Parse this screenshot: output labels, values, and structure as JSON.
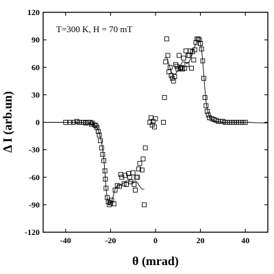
{
  "chart_data": {
    "type": "scatter",
    "title": "",
    "annotation": "T=300 K, H = 70 mT",
    "xlabel": "θ (mrad)",
    "ylabel": "Δ I (arb.un)",
    "xlim": [
      -50,
      50
    ],
    "ylim": [
      -120,
      120
    ],
    "xticks": [
      -40,
      -20,
      0,
      20,
      40
    ],
    "yticks": [
      -120,
      -90,
      -60,
      -30,
      0,
      30,
      60,
      90,
      120
    ],
    "grid": false,
    "legend": "none",
    "series": [
      {
        "kind": "points",
        "marker": "open-square",
        "points": [
          [
            -40,
            0
          ],
          [
            -38,
            0
          ],
          [
            -36.5,
            0
          ],
          [
            -35,
            1
          ],
          [
            -34,
            0
          ],
          [
            -33,
            0
          ],
          [
            -32,
            0
          ],
          [
            -31,
            -1
          ],
          [
            -30,
            0
          ],
          [
            -29,
            0
          ],
          [
            -28.5,
            -2
          ],
          [
            -28,
            -1
          ],
          [
            -27,
            -3
          ],
          [
            -26.5,
            -4
          ],
          [
            -26,
            -6
          ],
          [
            -25.5,
            -10
          ],
          [
            -25,
            -14
          ],
          [
            -24.5,
            -20
          ],
          [
            -24,
            -28
          ],
          [
            -23.5,
            -35
          ],
          [
            -23,
            -42
          ],
          [
            -22.5,
            -53
          ],
          [
            -22.3,
            -62
          ],
          [
            -22,
            -72
          ],
          [
            -21.5,
            -82
          ],
          [
            -21,
            -87
          ],
          [
            -20.5,
            -90
          ],
          [
            -20,
            -88
          ],
          [
            -19.5,
            -85
          ],
          [
            -18.5,
            -89
          ],
          [
            -18,
            -74
          ],
          [
            -17,
            -69
          ],
          [
            -16,
            -70
          ],
          [
            -15.5,
            -57
          ],
          [
            -15,
            -60
          ],
          [
            -14,
            -67
          ],
          [
            -13.5,
            -58
          ],
          [
            -13,
            -68
          ],
          [
            -12,
            -56
          ],
          [
            -11.5,
            -60
          ],
          [
            -11,
            -65
          ],
          [
            -10,
            -55
          ],
          [
            -9.5,
            -68
          ],
          [
            -9,
            -74
          ],
          [
            -8.5,
            -60
          ],
          [
            -8,
            -60
          ],
          [
            -7.5,
            -51
          ],
          [
            -7,
            -45
          ],
          [
            -6,
            -52
          ],
          [
            -5.5,
            -40
          ],
          [
            -5,
            -90
          ],
          [
            -4.5,
            -28
          ],
          [
            -2.5,
            0
          ],
          [
            -2,
            5
          ],
          [
            -1.5,
            -3
          ],
          [
            -1,
            1
          ],
          [
            -0.5,
            -5
          ],
          [
            0,
            4
          ],
          [
            3.5,
            0
          ],
          [
            4,
            27
          ],
          [
            4.5,
            66
          ],
          [
            5,
            91
          ],
          [
            5.5,
            73
          ],
          [
            6,
            55
          ],
          [
            6.5,
            60
          ],
          [
            7,
            51
          ],
          [
            7.5,
            48
          ],
          [
            8,
            45
          ],
          [
            8.5,
            50
          ],
          [
            9,
            63
          ],
          [
            9.5,
            61
          ],
          [
            10,
            58
          ],
          [
            10.5,
            73
          ],
          [
            11,
            59
          ],
          [
            11.5,
            60
          ],
          [
            12,
            58
          ],
          [
            12.5,
            70
          ],
          [
            13,
            59
          ],
          [
            13.5,
            78
          ],
          [
            14,
            63
          ],
          [
            14.5,
            73
          ],
          [
            15,
            73
          ],
          [
            15.5,
            78
          ],
          [
            16,
            59
          ],
          [
            16.5,
            77
          ],
          [
            17,
            68
          ],
          [
            17.5,
            79
          ],
          [
            18,
            87
          ],
          [
            18.5,
            91
          ],
          [
            19,
            91
          ],
          [
            19.5,
            90
          ],
          [
            20,
            86
          ],
          [
            20.5,
            80
          ],
          [
            21,
            67
          ],
          [
            21.5,
            48
          ],
          [
            22,
            27
          ],
          [
            22.5,
            18
          ],
          [
            23,
            12
          ],
          [
            23.5,
            8
          ],
          [
            24,
            5
          ],
          [
            25,
            4
          ],
          [
            26,
            3
          ],
          [
            27,
            2
          ],
          [
            28,
            1
          ],
          [
            29,
            1
          ],
          [
            30,
            1
          ],
          [
            31,
            0
          ],
          [
            32,
            0
          ],
          [
            33,
            0
          ],
          [
            34,
            0
          ],
          [
            35,
            0
          ],
          [
            36,
            0
          ],
          [
            37,
            0
          ],
          [
            38,
            0
          ],
          [
            39,
            0
          ],
          [
            40,
            0
          ]
        ]
      },
      {
        "kind": "fit",
        "segments": [
          [
            [
              -50,
              0
            ],
            [
              -40,
              0
            ],
            [
              -34,
              0
            ],
            [
              -30,
              -1
            ],
            [
              -28,
              -2
            ],
            [
              -27,
              -3
            ],
            [
              -26,
              -6
            ],
            [
              -25,
              -12
            ],
            [
              -24,
              -22
            ],
            [
              -23,
              -40
            ],
            [
              -22.5,
              -55
            ],
            [
              -22,
              -72
            ],
            [
              -21.5,
              -83
            ],
            [
              -21,
              -88
            ],
            [
              -20.5,
              -90
            ],
            [
              -20,
              -89
            ],
            [
              -19,
              -82
            ],
            [
              -18,
              -73
            ],
            [
              -17,
              -69
            ],
            [
              -16,
              -69
            ],
            [
              -15,
              -68
            ],
            [
              -14,
              -66
            ],
            [
              -13,
              -64
            ],
            [
              -12,
              -64
            ],
            [
              -11,
              -65
            ],
            [
              -10,
              -65
            ],
            [
              -9,
              -64
            ],
            [
              -8,
              -66
            ],
            [
              -7,
              -70
            ],
            [
              -6,
              -73
            ],
            [
              -5,
              -73
            ]
          ],
          [
            [
              4,
              70
            ],
            [
              5,
              71
            ],
            [
              6,
              63
            ],
            [
              7,
              55
            ],
            [
              8,
              52
            ],
            [
              9,
              53
            ],
            [
              10,
              57
            ],
            [
              11,
              62
            ],
            [
              12,
              66
            ],
            [
              13,
              66
            ],
            [
              14,
              64
            ],
            [
              15,
              66
            ],
            [
              16,
              72
            ],
            [
              17,
              80
            ],
            [
              18,
              86
            ],
            [
              19,
              89
            ],
            [
              19.5,
              89
            ],
            [
              20,
              86
            ],
            [
              20.5,
              80
            ],
            [
              21,
              67
            ],
            [
              21.5,
              52
            ],
            [
              22,
              35
            ],
            [
              22.5,
              22
            ],
            [
              23,
              14
            ],
            [
              24,
              6
            ],
            [
              25,
              3
            ],
            [
              27,
              1
            ],
            [
              30,
              0
            ],
            [
              40,
              0
            ],
            [
              50,
              -1
            ]
          ]
        ]
      }
    ]
  }
}
